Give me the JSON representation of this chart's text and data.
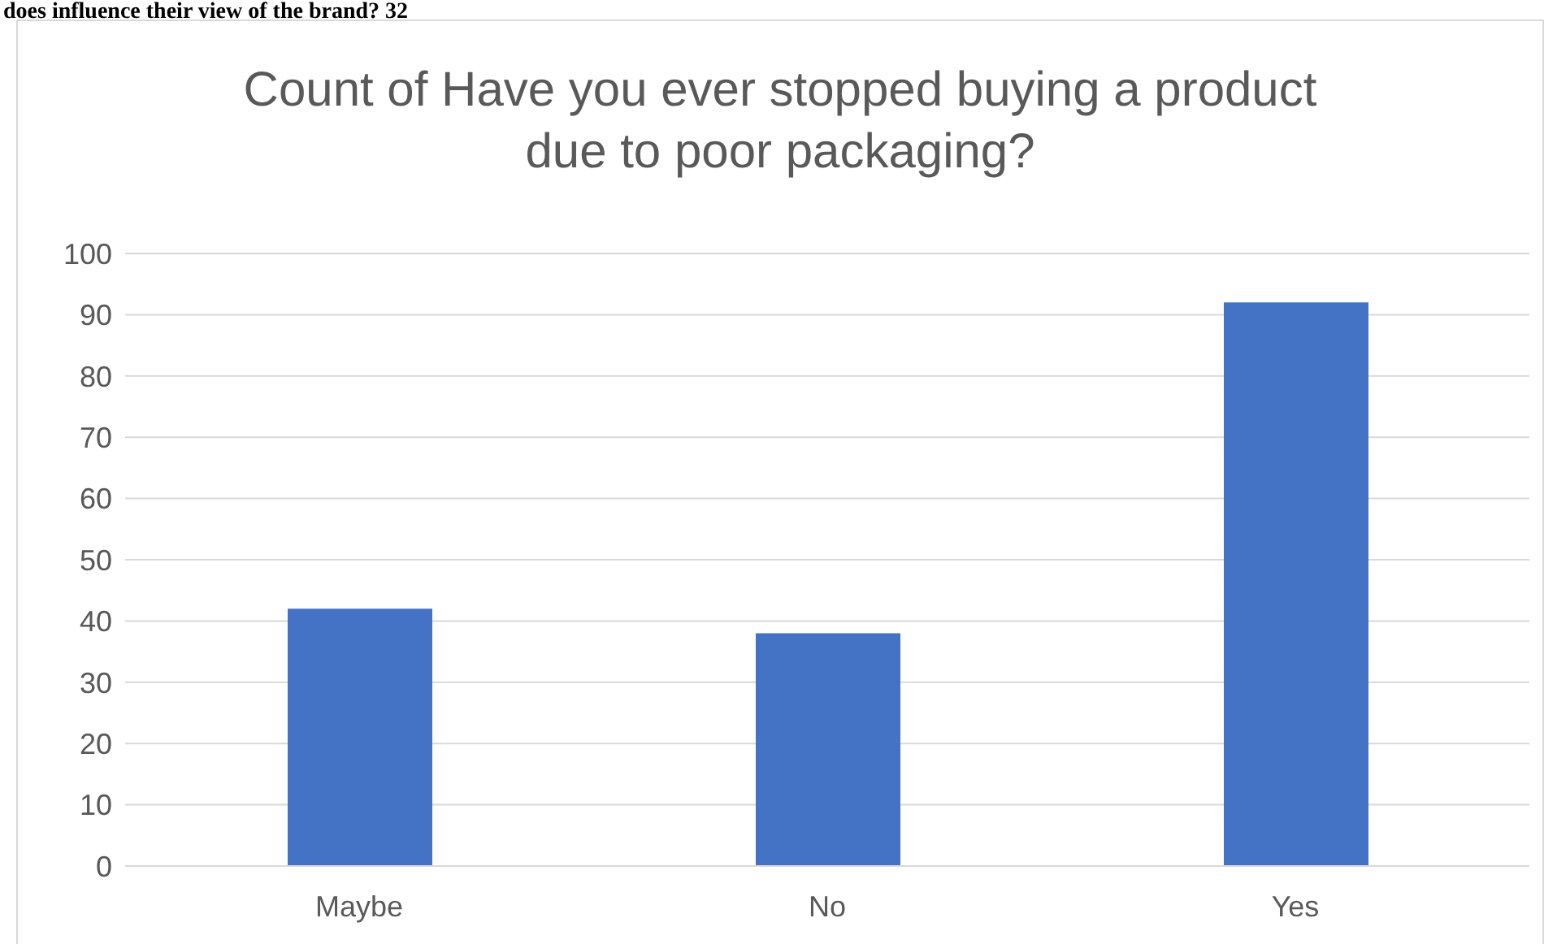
{
  "chart_data": {
    "type": "bar",
    "title": "Count of Have you ever stopped buying a product due to poor packaging?",
    "categories": [
      "Maybe",
      "No",
      "Yes"
    ],
    "values": [
      42,
      38,
      92
    ],
    "color": "#4472c4",
    "ylim": [
      0,
      100
    ],
    "yticks": [
      0,
      10,
      20,
      30,
      40,
      50,
      60,
      70,
      80,
      90,
      100
    ],
    "grid": "y",
    "annotations": [
      "does influence their view of the brand? 32"
    ]
  }
}
